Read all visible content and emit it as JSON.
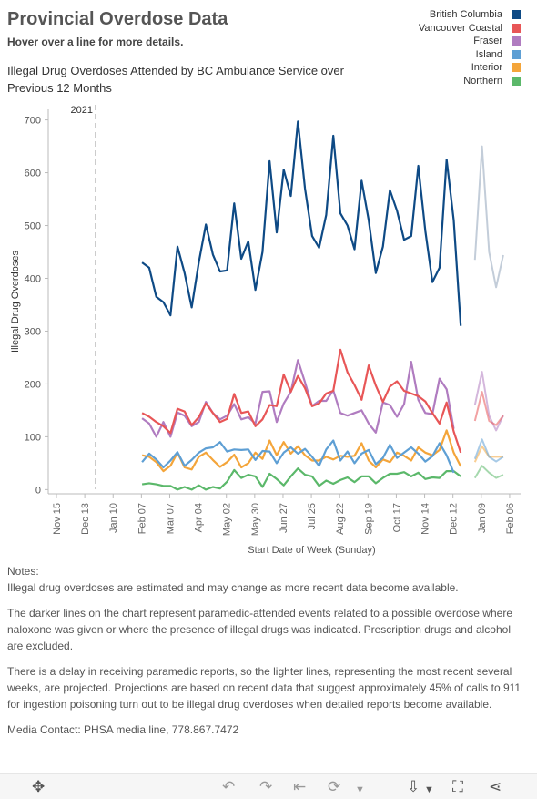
{
  "header": {
    "title": "Provincial Overdose Data",
    "subtitle": "Hover over a line for more details.",
    "chart_title": "Illegal Drug Overdoses Attended by BC Ambulance Service over Previous 12 Months"
  },
  "colors": {
    "british_columbia": "#0e4a85",
    "vancouver_coastal": "#e85657",
    "fraser": "#b07cc0",
    "island": "#5e9fd4",
    "interior": "#f4a53a",
    "northern": "#5bb86a",
    "projected": "#c3cdd9"
  },
  "chart_data": {
    "type": "line",
    "title": "Illegal Drug Overdoses Attended by BC Ambulance Service over Previous 12 Months",
    "xlabel": "Start Date of Week (Sunday)",
    "ylabel": "Illegal Drug Overdoses",
    "ylim": [
      0,
      720
    ],
    "yticks": [
      0,
      100,
      200,
      300,
      400,
      500,
      600,
      700
    ],
    "x_tick_labels": [
      "Nov 15",
      "Dec 13",
      "Jan 10",
      "Feb 07",
      "Mar 07",
      "Apr 04",
      "May 02",
      "May 30",
      "Jun 27",
      "Jul 25",
      "Aug 22",
      "Sep 19",
      "Oct 17",
      "Nov 14",
      "Dec 12",
      "Jan 09",
      "Feb 06"
    ],
    "reference_line_label": "2021",
    "grid": false,
    "legend_position": "top-right",
    "series": [
      {
        "name": "British Columbia",
        "color_key": "british_columbia",
        "start_week": 13,
        "values": [
          430,
          420,
          365,
          355,
          330,
          460,
          410,
          345,
          430,
          502,
          445,
          413,
          415,
          542,
          437,
          470,
          378,
          450,
          622,
          487,
          606,
          556,
          697,
          570,
          480,
          458,
          520,
          670,
          523,
          500,
          455,
          585,
          510,
          410,
          460,
          567,
          528,
          473,
          480,
          613,
          490,
          393,
          420,
          625,
          510,
          310
        ],
        "projected": [
          435,
          650,
          450,
          383,
          444
        ]
      },
      {
        "name": "Vancouver Coastal",
        "color_key": "vancouver_coastal",
        "start_week": 13,
        "values": [
          145,
          138,
          128,
          120,
          107,
          153,
          148,
          122,
          137,
          163,
          145,
          128,
          134,
          181,
          145,
          148,
          120,
          133,
          160,
          158,
          218,
          185,
          215,
          192,
          158,
          163,
          182,
          187,
          265,
          222,
          198,
          170,
          235,
          197,
          166,
          195,
          205,
          187,
          182,
          177,
          167,
          145,
          125,
          165,
          110,
          70
        ],
        "projected": [
          130,
          185,
          130,
          122,
          140
        ]
      },
      {
        "name": "Fraser",
        "color_key": "fraser",
        "start_week": 13,
        "values": [
          135,
          125,
          100,
          128,
          100,
          146,
          140,
          120,
          128,
          166,
          145,
          133,
          140,
          162,
          133,
          137,
          125,
          185,
          186,
          128,
          163,
          185,
          245,
          203,
          158,
          168,
          168,
          188,
          145,
          140,
          145,
          150,
          125,
          108,
          165,
          160,
          138,
          162,
          242,
          170,
          145,
          143,
          210,
          190,
          115
        ],
        "projected": [
          160,
          223,
          140,
          112,
          140
        ]
      },
      {
        "name": "Island",
        "color_key": "island",
        "start_week": 13,
        "values": [
          52,
          68,
          57,
          42,
          55,
          71,
          45,
          56,
          70,
          78,
          80,
          90,
          72,
          76,
          75,
          76,
          56,
          73,
          72,
          50,
          70,
          80,
          68,
          77,
          62,
          45,
          76,
          93,
          55,
          72,
          50,
          68,
          75,
          48,
          60,
          85,
          60,
          70,
          80,
          68,
          53,
          63,
          88,
          65,
          32
        ],
        "projected": [
          58,
          95,
          62,
          53,
          62
        ]
      },
      {
        "name": "Interior",
        "color_key": "interior",
        "start_week": 13,
        "values": [
          65,
          62,
          52,
          35,
          45,
          70,
          42,
          38,
          62,
          70,
          56,
          43,
          52,
          66,
          42,
          50,
          70,
          58,
          93,
          65,
          90,
          68,
          82,
          65,
          55,
          55,
          62,
          57,
          64,
          62,
          64,
          88,
          55,
          42,
          57,
          52,
          70,
          64,
          55,
          80,
          70,
          65,
          75,
          112,
          70,
          44
        ],
        "projected": [
          52,
          82,
          62,
          62,
          62
        ]
      },
      {
        "name": "Northern",
        "color_key": "northern",
        "start_week": 13,
        "values": [
          10,
          12,
          10,
          7,
          7,
          0,
          5,
          0,
          8,
          0,
          5,
          2,
          15,
          37,
          22,
          28,
          25,
          5,
          30,
          20,
          8,
          25,
          40,
          28,
          25,
          7,
          17,
          11,
          18,
          23,
          14,
          25,
          25,
          12,
          22,
          30,
          30,
          33,
          25,
          32,
          20,
          23,
          22,
          35,
          35,
          25
        ],
        "projected": [
          22,
          45,
          32,
          22,
          28
        ]
      }
    ]
  },
  "notes": {
    "heading": "Notes:",
    "p1": "Illegal drug overdoses are estimated and may change as more recent data become available.",
    "p2": "The darker lines on the chart represent paramedic-attended events related to a possible overdose where naloxone was given or where the presence of illegal drugs was indicated. Prescription drugs and alcohol are excluded.",
    "p3": "There is a delay in receiving paramedic reports, so the lighter lines, representing the most recent several weeks, are projected.  Projections are based on recent data that suggest approximately 45% of calls to 911 for ingestion poisoning turn out to be illegal drug overdoses when detailed reports become available.",
    "p4": "Media Contact: PHSA media line, 778.867.7472"
  },
  "toolbar": {
    "move_icon": "move-arrows-icon",
    "undo_icon": "undo-icon",
    "redo_icon": "redo-icon",
    "revert_icon": "revert-icon",
    "download_icon": "download-icon",
    "fullscreen_icon": "fullscreen-icon",
    "share_icon": "share-icon"
  }
}
